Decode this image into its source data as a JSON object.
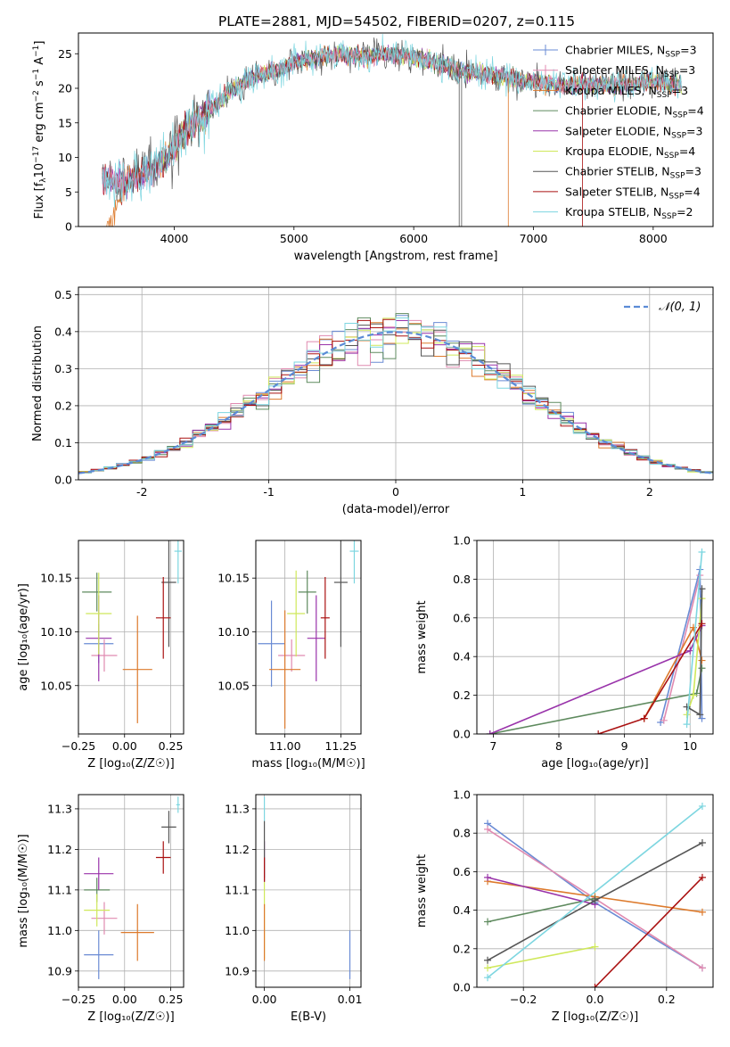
{
  "title": "PLATE=2881, MJD=54502, FIBERID=0207, z=0.115",
  "colors": [
    "#6a8bd4",
    "#e08ab0",
    "#dd7a2c",
    "#5e8a5e",
    "#9933aa",
    "#cfe85a",
    "#555555",
    "#aa1111",
    "#7dd6e0"
  ],
  "series_names": [
    "Chabrier MILES, N",
    "Salpeter MILES, N",
    "Kroupa MILES, N",
    "Chabrier ELODIE, N",
    "Salpeter ELODIE, N",
    "Kroupa ELODIE, N",
    "Chabrier STELIB, N",
    "Salpeter STELIB, N",
    "Kroupa STELIB, N"
  ],
  "series_nssp": [
    "=3",
    "=3",
    "=3",
    "=4",
    "=3",
    "=4",
    "=3",
    "=4",
    "=2"
  ],
  "ssp_subscript": "SSP",
  "chart_data": [
    {
      "type": "line",
      "id": "spectrum",
      "title": "PLATE=2881, MJD=54502, FIBERID=0207, z=0.115",
      "xlabel": "wavelength [Angstrom, rest frame]",
      "ylabel_parts": [
        "Flux [f",
        "λ",
        "10",
        "−17",
        " erg cm",
        "−2",
        " s",
        "−1",
        " A",
        "−1",
        "]"
      ],
      "xlim": [
        3200,
        8500
      ],
      "ylim": [
        0,
        28
      ],
      "xticks": [
        4000,
        5000,
        6000,
        7000,
        8000
      ],
      "yticks": [
        0,
        5,
        10,
        15,
        20,
        25
      ],
      "legend": "top-right",
      "continuum": {
        "x": [
          3400,
          3600,
          3800,
          3950,
          4100,
          4300,
          4500,
          4700,
          4850,
          5000,
          5200,
          5400,
          5600,
          5800,
          6000,
          6200,
          6400,
          6600,
          6800,
          7000,
          7200,
          7400,
          7600,
          7800,
          8000,
          8240
        ],
        "y": [
          7,
          6.5,
          8,
          10,
          14,
          17,
          20,
          22,
          22.5,
          24,
          24.5,
          25,
          24.5,
          25,
          24.5,
          23.5,
          22.5,
          22,
          21.5,
          21,
          20.5,
          20.5,
          20.5,
          20.5,
          21,
          20.5
        ]
      }
    },
    {
      "type": "bar",
      "id": "residuals",
      "xlabel": "(data-model)/error",
      "ylabel": "Normed distribution",
      "xlim": [
        -2.5,
        2.5
      ],
      "ylim": [
        0,
        0.52
      ],
      "xticks": [
        -2,
        -1,
        0,
        1,
        2
      ],
      "yticks": [
        0,
        0.1,
        0.2,
        0.3,
        0.4,
        0.5
      ],
      "ytick_labels": [
        "0.0",
        "0.1",
        "0.2",
        "0.3",
        "0.4",
        "0.5"
      ],
      "legend_label": "𝒩(0, 1)",
      "legend": "top-right",
      "bin_width": 0.1
    },
    {
      "type": "scatter",
      "id": "z_age",
      "xlabel": "Z [log₁₀(Z/Z☉)]",
      "ylabel": "age  [log₁₀(age/yr)]",
      "xlim": [
        -0.25,
        0.32
      ],
      "ylim": [
        10.005,
        10.185
      ],
      "xticks": [
        -0.25,
        0,
        0.25
      ],
      "xtick_labels": [
        "−0.25",
        "0.00",
        "0.25"
      ],
      "yticks": [
        10.05,
        10.1,
        10.15
      ],
      "ytick_labels": [
        "10.05",
        "10.10",
        "10.15"
      ],
      "points": [
        {
          "x": -0.14,
          "y": 10.089,
          "xerr": 0.08,
          "yerr": 0.018,
          "c": 0
        },
        {
          "x": -0.11,
          "y": 10.078,
          "xerr": 0.07,
          "yerr": 0.015,
          "c": 1
        },
        {
          "x": 0.07,
          "y": 10.065,
          "xerr": 0.08,
          "yerr": 0.05,
          "c": 2
        },
        {
          "x": -0.15,
          "y": 10.137,
          "xerr": 0.08,
          "yerr": 0.018,
          "c": 3
        },
        {
          "x": -0.14,
          "y": 10.094,
          "xerr": 0.07,
          "yerr": 0.04,
          "c": 4
        },
        {
          "x": -0.14,
          "y": 10.117,
          "xerr": 0.07,
          "yerr": 0.038,
          "c": 5
        },
        {
          "x": 0.24,
          "y": 10.146,
          "xerr": 0.04,
          "yerr": 0.06,
          "c": 6
        },
        {
          "x": 0.21,
          "y": 10.113,
          "xerr": 0.04,
          "yerr": 0.038,
          "c": 7
        },
        {
          "x": 0.29,
          "y": 10.175,
          "xerr": 0.02,
          "yerr": 0.03,
          "c": 8
        }
      ]
    },
    {
      "type": "scatter",
      "id": "mass_age",
      "xlabel": "mass [log₁₀(M/M☉)]",
      "xlim": [
        10.87,
        11.34
      ],
      "ylim": [
        10.005,
        10.185
      ],
      "xticks": [
        11.0,
        11.25
      ],
      "xtick_labels": [
        "11.00",
        "11.25"
      ],
      "yticks": [
        10.05,
        10.1,
        10.15
      ],
      "ytick_labels": [
        "10.05",
        "10.10",
        "10.15"
      ],
      "points": [
        {
          "x": 10.94,
          "y": 10.089,
          "xerr": 0.06,
          "yerr": 0.04,
          "c": 0
        },
        {
          "x": 11.03,
          "y": 10.078,
          "xerr": 0.06,
          "yerr": 0.015,
          "c": 1
        },
        {
          "x": 11.0,
          "y": 10.065,
          "xerr": 0.07,
          "yerr": 0.055,
          "c": 2
        },
        {
          "x": 11.1,
          "y": 10.137,
          "xerr": 0.04,
          "yerr": 0.02,
          "c": 3
        },
        {
          "x": 11.14,
          "y": 10.094,
          "xerr": 0.04,
          "yerr": 0.04,
          "c": 4
        },
        {
          "x": 11.05,
          "y": 10.117,
          "xerr": 0.04,
          "yerr": 0.04,
          "c": 5
        },
        {
          "x": 11.25,
          "y": 10.146,
          "xerr": 0.03,
          "yerr": 0.06,
          "c": 6
        },
        {
          "x": 11.18,
          "y": 10.113,
          "xerr": 0.02,
          "yerr": 0.038,
          "c": 7
        },
        {
          "x": 11.31,
          "y": 10.175,
          "xerr": 0.02,
          "yerr": 0.03,
          "c": 8
        }
      ]
    },
    {
      "type": "line",
      "id": "age_weight",
      "xlabel": "age  [log₁₀(age/yr)]",
      "ylabel": "mass weight",
      "xlim": [
        6.75,
        10.35
      ],
      "ylim": [
        0,
        1
      ],
      "xticks": [
        7,
        8,
        9,
        10
      ],
      "yticks": [
        0,
        0.2,
        0.4,
        0.6,
        0.8,
        1.0
      ],
      "ytick_labels": [
        "0.0",
        "0.2",
        "0.4",
        "0.6",
        "0.8",
        "1.0"
      ],
      "series": [
        {
          "c": 0,
          "x": [
            9.55,
            10.15,
            10.18
          ],
          "y": [
            0.06,
            0.85,
            0.08
          ]
        },
        {
          "c": 1,
          "x": [
            9.6,
            10.15
          ],
          "y": [
            0.07,
            0.82
          ]
        },
        {
          "c": 2,
          "x": [
            9.3,
            10.05,
            10.18
          ],
          "y": [
            0.08,
            0.55,
            0.38
          ]
        },
        {
          "c": 3,
          "x": [
            6.95,
            10.1,
            10.18
          ],
          "y": [
            0.0,
            0.21,
            0.34
          ]
        },
        {
          "c": 4,
          "x": [
            6.95,
            10.0,
            10.18
          ],
          "y": [
            0.0,
            0.43,
            0.56
          ]
        },
        {
          "c": 5,
          "x": [
            9.95,
            10.05,
            10.18
          ],
          "y": [
            0.1,
            0.2,
            0.7
          ]
        },
        {
          "c": 6,
          "x": [
            9.95,
            10.15,
            10.18
          ],
          "y": [
            0.14,
            0.1,
            0.75
          ]
        },
        {
          "c": 7,
          "x": [
            8.6,
            9.3,
            10.18
          ],
          "y": [
            0.0,
            0.08,
            0.57
          ]
        },
        {
          "c": 8,
          "x": [
            9.95,
            10.18
          ],
          "y": [
            0.05,
            0.94
          ]
        }
      ]
    },
    {
      "type": "scatter",
      "id": "z_mass",
      "xlabel": "Z [log₁₀(Z/Z☉)]",
      "ylabel": "mass [log₁₀(M/M☉)]",
      "xlim": [
        -0.25,
        0.32
      ],
      "ylim": [
        10.86,
        11.335
      ],
      "xticks": [
        -0.25,
        0,
        0.25
      ],
      "xtick_labels": [
        "−0.25",
        "0.00",
        "0.25"
      ],
      "yticks": [
        10.9,
        11.0,
        11.1,
        11.2,
        11.3
      ],
      "ytick_labels": [
        "10.9",
        "11.0",
        "11.1",
        "11.2",
        "11.3"
      ],
      "points": [
        {
          "x": -0.14,
          "y": 10.94,
          "xerr": 0.08,
          "yerr": 0.06,
          "c": 0
        },
        {
          "x": -0.11,
          "y": 11.03,
          "xerr": 0.07,
          "yerr": 0.04,
          "c": 1
        },
        {
          "x": 0.07,
          "y": 10.995,
          "xerr": 0.09,
          "yerr": 0.07,
          "c": 2
        },
        {
          "x": -0.15,
          "y": 11.1,
          "xerr": 0.07,
          "yerr": 0.03,
          "c": 3
        },
        {
          "x": -0.14,
          "y": 11.14,
          "xerr": 0.08,
          "yerr": 0.04,
          "c": 4
        },
        {
          "x": -0.15,
          "y": 11.05,
          "xerr": 0.07,
          "yerr": 0.04,
          "c": 5
        },
        {
          "x": 0.24,
          "y": 11.255,
          "xerr": 0.04,
          "yerr": 0.04,
          "c": 6
        },
        {
          "x": 0.21,
          "y": 11.18,
          "xerr": 0.04,
          "yerr": 0.04,
          "c": 7
        },
        {
          "x": 0.29,
          "y": 11.31,
          "xerr": 0.01,
          "yerr": 0.02,
          "c": 8
        }
      ]
    },
    {
      "type": "scatter",
      "id": "ebv_mass",
      "xlabel": "E(B-V)",
      "xlim": [
        -0.001,
        0.0113
      ],
      "ylim": [
        10.86,
        11.335
      ],
      "xticks": [
        0,
        0.01
      ],
      "xtick_labels": [
        "0.00",
        "0.01"
      ],
      "yticks": [
        10.9,
        11.0,
        11.1,
        11.2,
        11.3
      ],
      "ytick_labels": [
        "10.9",
        "11.0",
        "11.1",
        "11.2",
        "11.3"
      ],
      "points": [
        {
          "x": 0.0,
          "y": 11.03,
          "xerr": 0,
          "yerr": 0.1,
          "c": 5
        },
        {
          "x": 0.0,
          "y": 11.17,
          "xerr": 0,
          "yerr": 0.05,
          "c": 4
        },
        {
          "x": 0.0,
          "y": 11.2,
          "xerr": 0,
          "yerr": 0.07,
          "c": 6
        },
        {
          "x": 0.0,
          "y": 10.995,
          "xerr": 0,
          "yerr": 0.07,
          "c": 2
        },
        {
          "x": 0.0,
          "y": 11.3,
          "xerr": 0,
          "yerr": 0.03,
          "c": 8
        },
        {
          "x": 0.0,
          "y": 11.15,
          "xerr": 0,
          "yerr": 0.03,
          "c": 7
        },
        {
          "x": 0.01,
          "y": 10.94,
          "xerr": 0,
          "yerr": 0.06,
          "c": 0
        }
      ]
    },
    {
      "type": "line",
      "id": "z_weight",
      "xlabel": "Z [log₁₀(Z/Z☉)]",
      "ylabel": "mass weight",
      "xlim": [
        -0.33,
        0.33
      ],
      "ylim": [
        0,
        1
      ],
      "xticks": [
        -0.2,
        0,
        0.2
      ],
      "xtick_labels": [
        "−0.2",
        "0.0",
        "0.2"
      ],
      "yticks": [
        0,
        0.2,
        0.4,
        0.6,
        0.8,
        1.0
      ],
      "ytick_labels": [
        "0.0",
        "0.2",
        "0.4",
        "0.6",
        "0.8",
        "1.0"
      ],
      "series": [
        {
          "c": 0,
          "x": [
            -0.3,
            0.0,
            0.3
          ],
          "y": [
            0.85,
            0.44,
            0.1
          ]
        },
        {
          "c": 1,
          "x": [
            -0.3,
            0.0,
            0.3
          ],
          "y": [
            0.82,
            0.46,
            0.1
          ]
        },
        {
          "c": 2,
          "x": [
            -0.3,
            0.0,
            0.3
          ],
          "y": [
            0.55,
            0.47,
            0.39
          ]
        },
        {
          "c": 3,
          "x": [
            -0.3,
            0.0
          ],
          "y": [
            0.34,
            0.46
          ]
        },
        {
          "c": 4,
          "x": [
            -0.3,
            0.0
          ],
          "y": [
            0.57,
            0.43
          ]
        },
        {
          "c": 5,
          "x": [
            -0.3,
            0.0
          ],
          "y": [
            0.1,
            0.21
          ]
        },
        {
          "c": 6,
          "x": [
            -0.3,
            0.0,
            0.3
          ],
          "y": [
            0.14,
            0.45,
            0.75
          ]
        },
        {
          "c": 7,
          "x": [
            0.0,
            0.3
          ],
          "y": [
            0.0,
            0.57
          ]
        },
        {
          "c": 8,
          "x": [
            -0.3,
            0.3
          ],
          "y": [
            0.05,
            0.94
          ]
        }
      ]
    }
  ]
}
